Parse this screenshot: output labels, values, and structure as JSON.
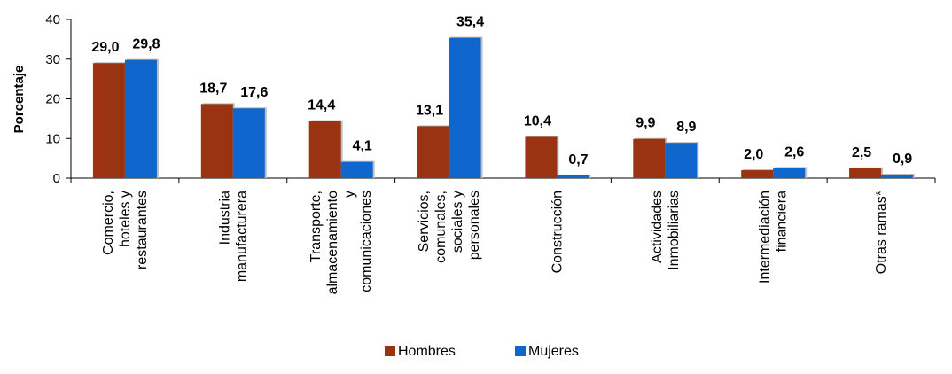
{
  "chart_data": {
    "type": "bar",
    "ylabel": "Porcentaje",
    "ylim": [
      0,
      40
    ],
    "yticks": [
      0,
      10,
      20,
      30,
      40
    ],
    "categories": [
      [
        "Comercio,",
        "hoteles y",
        "restaurantes"
      ],
      [
        "Industria",
        "manufacturera"
      ],
      [
        "Transporte,",
        "almacenamiento",
        "y",
        "comunicaciones"
      ],
      [
        "Servicios,",
        "comunales,",
        "sociales y",
        "personales"
      ],
      [
        "Construcción"
      ],
      [
        "Actividades",
        "Inmobiliarias"
      ],
      [
        "Intermediación",
        "financiera"
      ],
      [
        "Otras ramas*"
      ]
    ],
    "series": [
      {
        "name": "Hombres",
        "color": "#993311",
        "values": [
          29.0,
          18.7,
          14.4,
          13.1,
          10.4,
          9.9,
          2.0,
          2.5
        ],
        "labels": [
          "29,0",
          "18,7",
          "14,4",
          "13,1",
          "10,4",
          "9,9",
          "2,0",
          "2,5"
        ]
      },
      {
        "name": "Mujeres",
        "color": "#0F66CC",
        "values": [
          29.8,
          17.6,
          4.1,
          35.4,
          0.7,
          8.9,
          2.6,
          0.9
        ],
        "labels": [
          "29,8",
          "17,6",
          "4,1",
          "35,4",
          "0,7",
          "8,9",
          "2,6",
          "0,9"
        ]
      }
    ],
    "legend": {
      "position": "bottom"
    },
    "grid": false
  }
}
